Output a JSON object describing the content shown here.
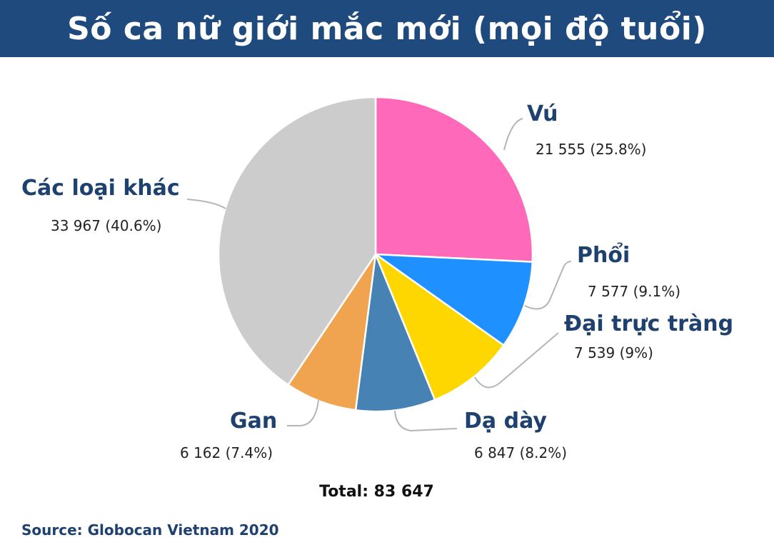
{
  "header": {
    "title": "Số ca nữ giới mắc mới (mọi độ tuổi)"
  },
  "labels": {
    "vu": {
      "name": "Vú",
      "value": "21 555 (25.8%)"
    },
    "phoi": {
      "name": "Phổi",
      "value": "7 577 (9.1%)"
    },
    "dai_truc_trang": {
      "name": "Đại trực tràng",
      "value": "7 539 (9%)"
    },
    "da_day": {
      "name": "Dạ dày",
      "value": "6 847 (8.2%)"
    },
    "gan": {
      "name": "Gan",
      "value": "6 162 (7.4%)"
    },
    "khac": {
      "name": "Các loại khác",
      "value": "33 967 (40.6%)"
    }
  },
  "footer": {
    "total": "Total: 83 647",
    "source": "Source: Globocan Vietnam 2020"
  },
  "colors": {
    "header_bg": "#1e4a7e",
    "label_text": "#1e4170",
    "vu": "#ff69b9",
    "phoi": "#1e90ff",
    "dai_truc_trang": "#ffd700",
    "da_day": "#4682b4",
    "gan": "#f0a44f",
    "khac": "#cccccc"
  },
  "chart_data": {
    "type": "pie",
    "title": "Số ca nữ giới mắc mới (mọi độ tuổi)",
    "categories": [
      "Vú",
      "Phổi",
      "Đại trực tràng",
      "Dạ dày",
      "Gan",
      "Các loại khác"
    ],
    "values": [
      21555,
      7577,
      7539,
      6847,
      6162,
      33967
    ],
    "percentages": [
      25.8,
      9.1,
      9.0,
      8.2,
      7.4,
      40.6
    ],
    "colors": [
      "#ff69b9",
      "#1e90ff",
      "#ffd700",
      "#4682b4",
      "#f0a44f",
      "#cccccc"
    ],
    "total": 83647,
    "start_angle": "12 o'clock, clockwise",
    "annotations": [
      "Total: 83 647",
      "Source: Globocan Vietnam 2020"
    ],
    "legend": "none (direct labels with leader lines)"
  }
}
